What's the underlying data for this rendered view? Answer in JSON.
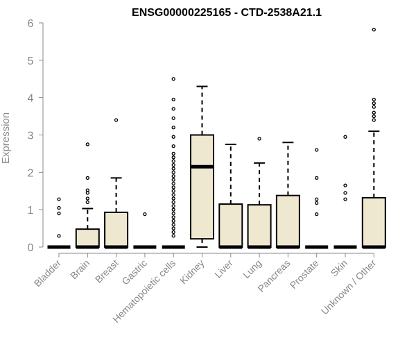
{
  "chart_data": {
    "type": "boxplot",
    "title": "ENSG00000225165 - CTD-2538A21.1",
    "ylabel": "Expression",
    "xlabel": "",
    "ylim": [
      0,
      6
    ],
    "yticks": [
      0,
      1,
      2,
      3,
      4,
      5,
      6
    ],
    "grid": false,
    "box_fill": "#efe8d0",
    "box_stroke": "#000000",
    "axis_color": "#888888",
    "categories": [
      "Bladder",
      "Brain",
      "Breast",
      "Gastric",
      "Hematopoietic cells",
      "Kidney",
      "Liver",
      "Lung",
      "Pancreas",
      "Prostate",
      "Skin",
      "Unknown / Other"
    ],
    "boxes": [
      {
        "q1": 0,
        "median": 0,
        "q3": 0,
        "lower": 0,
        "upper": 0,
        "outliers": [
          0.3,
          0.9,
          1.05,
          1.28
        ]
      },
      {
        "q1": 0,
        "median": 0,
        "q3": 0.48,
        "lower": 0,
        "upper": 1.03,
        "outliers": [
          1.2,
          1.3,
          1.45,
          1.52,
          1.85,
          2.75
        ]
      },
      {
        "q1": 0,
        "median": 0,
        "q3": 0.93,
        "lower": 0,
        "upper": 1.85,
        "outliers": [
          3.4
        ]
      },
      {
        "q1": 0,
        "median": 0,
        "q3": 0,
        "lower": 0,
        "upper": 0,
        "outliers": [
          0.88
        ]
      },
      {
        "q1": 0,
        "median": 0,
        "q3": 0,
        "lower": 0,
        "upper": 0,
        "outliers": [
          0.3,
          0.4,
          0.5,
          0.6,
          0.7,
          0.8,
          0.9,
          1.0,
          1.1,
          1.2,
          1.3,
          1.4,
          1.5,
          1.6,
          1.7,
          1.8,
          1.9,
          2.0,
          2.1,
          2.2,
          2.3,
          2.4,
          2.5,
          2.7,
          2.95,
          3.2,
          3.45,
          3.7,
          3.95,
          4.5
        ]
      },
      {
        "q1": 0.22,
        "median": 2.15,
        "q3": 3.0,
        "lower": 0,
        "upper": 4.3,
        "outliers": []
      },
      {
        "q1": 0,
        "median": 0,
        "q3": 1.15,
        "lower": 0,
        "upper": 2.75,
        "outliers": []
      },
      {
        "q1": 0,
        "median": 0,
        "q3": 1.13,
        "lower": 0,
        "upper": 2.25,
        "outliers": [
          2.9
        ]
      },
      {
        "q1": 0,
        "median": 0,
        "q3": 1.38,
        "lower": 0,
        "upper": 2.8,
        "outliers": []
      },
      {
        "q1": 0,
        "median": 0,
        "q3": 0,
        "lower": 0,
        "upper": 0,
        "outliers": [
          0.88,
          1.18,
          1.28,
          1.85,
          2.6
        ]
      },
      {
        "q1": 0,
        "median": 0,
        "q3": 0,
        "lower": 0,
        "upper": 0,
        "outliers": [
          1.28,
          1.45,
          1.65,
          2.95
        ]
      },
      {
        "q1": 0,
        "median": 0,
        "q3": 1.32,
        "lower": 0,
        "upper": 3.1,
        "outliers": [
          3.4,
          3.5,
          3.6,
          3.75,
          3.85,
          3.95,
          5.82
        ]
      }
    ]
  }
}
